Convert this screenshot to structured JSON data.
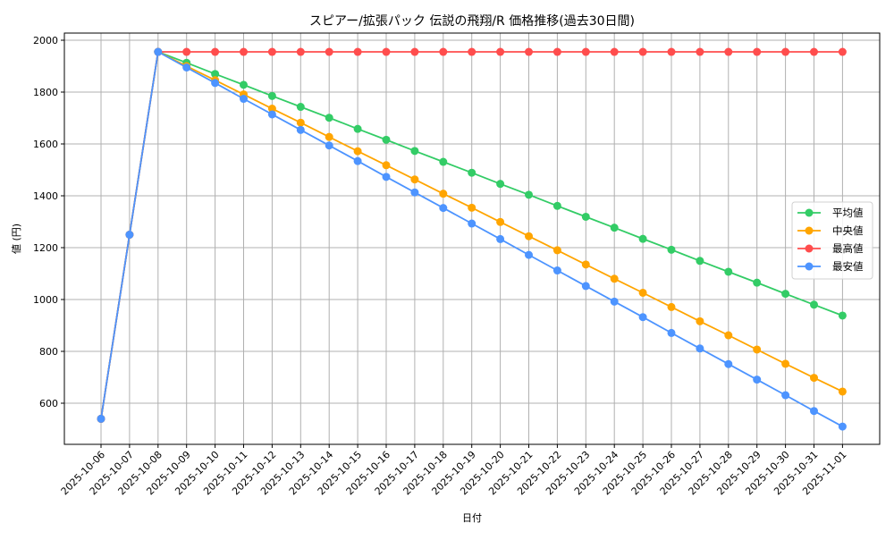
{
  "chart_data": {
    "type": "line",
    "title": "スピアー/拡張パック 伝説の飛翔/R 価格推移(過去30日間)",
    "xlabel": "日付",
    "ylabel": "値 (円)",
    "ylim": [
      430,
      2030
    ],
    "yticks": [
      600,
      800,
      1000,
      1200,
      1400,
      1600,
      1800,
      2000
    ],
    "grid": true,
    "legend_position": "center right",
    "x": [
      "2025-10-06",
      "2025-10-07",
      "2025-10-08",
      "2025-10-09",
      "2025-10-10",
      "2025-10-11",
      "2025-10-12",
      "2025-10-13",
      "2025-10-14",
      "2025-10-15",
      "2025-10-16",
      "2025-10-17",
      "2025-10-18",
      "2025-10-19",
      "2025-10-20",
      "2025-10-21",
      "2025-10-22",
      "2025-10-23",
      "2025-10-24",
      "2025-10-25",
      "2025-10-26",
      "2025-10-27",
      "2025-10-28",
      "2025-10-29",
      "2025-10-30",
      "2025-10-31",
      "2025-11-01"
    ],
    "series": [
      {
        "name": "平均値",
        "color": "#33cc66",
        "values": [
          540,
          1250,
          1955,
          1913,
          1870,
          1828,
          1785,
          1743,
          1701,
          1658,
          1616,
          1573,
          1531,
          1489,
          1446,
          1404,
          1361,
          1319,
          1277,
          1234,
          1192,
          1149,
          1107,
          1065,
          1022,
          980,
          938
        ]
      },
      {
        "name": "中央値",
        "color": "#ffa500",
        "values": [
          540,
          1250,
          1955,
          1900,
          1846,
          1791,
          1736,
          1682,
          1627,
          1572,
          1518,
          1463,
          1408,
          1354,
          1299,
          1244,
          1190,
          1135,
          1080,
          1026,
          971,
          916,
          862,
          807,
          752,
          698,
          645
        ]
      },
      {
        "name": "最高値",
        "color": "#ff4d4d",
        "values": [
          540,
          1250,
          1955,
          1955,
          1955,
          1955,
          1955,
          1955,
          1955,
          1955,
          1955,
          1955,
          1955,
          1955,
          1955,
          1955,
          1955,
          1955,
          1955,
          1955,
          1955,
          1955,
          1955,
          1955,
          1955,
          1955,
          1955
        ]
      },
      {
        "name": "最安値",
        "color": "#4d94ff",
        "values": [
          540,
          1250,
          1955,
          1895,
          1835,
          1774,
          1714,
          1654,
          1594,
          1534,
          1473,
          1413,
          1353,
          1293,
          1233,
          1172,
          1112,
          1052,
          992,
          932,
          871,
          811,
          751,
          691,
          631,
          570,
          510
        ]
      }
    ]
  }
}
